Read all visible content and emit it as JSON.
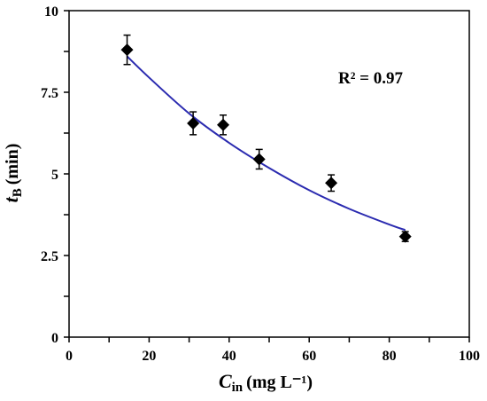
{
  "chart_data": {
    "type": "scatter",
    "xlabel": {
      "main": "C",
      "sub": "in",
      "unit": "(mg L⁻¹)"
    },
    "ylabel": {
      "main": "t",
      "sub": "B",
      "unit": "(min)"
    },
    "xlim": [
      0,
      100
    ],
    "ylim": [
      0,
      10
    ],
    "x_ticks": [
      0,
      20,
      40,
      60,
      80,
      100
    ],
    "y_ticks": [
      0,
      2.5,
      5,
      7.5,
      10
    ],
    "x_tick_labels": [
      "0",
      "20",
      "40",
      "60",
      "80",
      "100"
    ],
    "y_tick_labels": [
      "0",
      "2.5",
      "5",
      "7.5",
      "10"
    ],
    "grid": false,
    "legend": "none",
    "points": [
      {
        "x": 14.5,
        "y": 8.8,
        "err": 0.45
      },
      {
        "x": 31.0,
        "y": 6.55,
        "err": 0.35
      },
      {
        "x": 38.5,
        "y": 6.5,
        "err": 0.3
      },
      {
        "x": 47.5,
        "y": 5.45,
        "err": 0.3
      },
      {
        "x": 65.5,
        "y": 4.72,
        "err": 0.25
      },
      {
        "x": 84.0,
        "y": 3.08,
        "err": 0.15
      }
    ],
    "fit_curve": [
      [
        14.5,
        8.6
      ],
      [
        20,
        7.95
      ],
      [
        30,
        6.85
      ],
      [
        40,
        5.95
      ],
      [
        50,
        5.18
      ],
      [
        60,
        4.5
      ],
      [
        70,
        3.93
      ],
      [
        80,
        3.45
      ],
      [
        84,
        3.28
      ]
    ],
    "annotation": "R² = 0.97",
    "colors": {
      "marker": "#000000",
      "fit_line": "#2b2bb0",
      "axis": "#000000"
    }
  }
}
